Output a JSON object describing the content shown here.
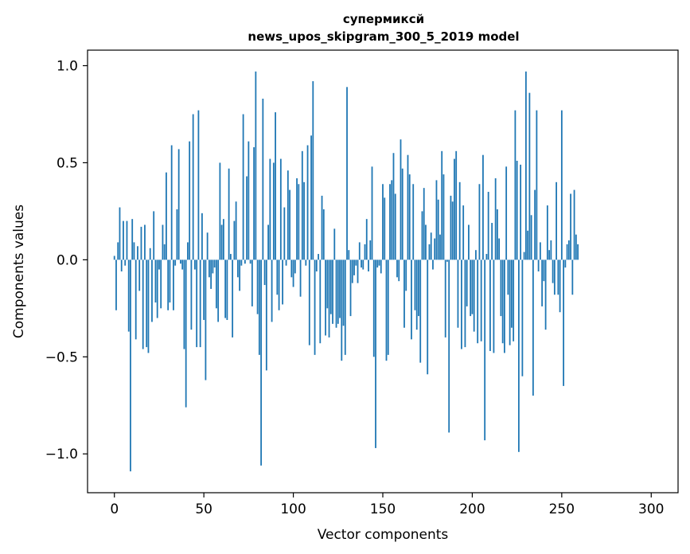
{
  "chart_data": {
    "type": "bar",
    "title": "супермиксй",
    "subtitle": "news_upos_skipgram_300_5_2019 model",
    "xlabel": "Vector components",
    "ylabel": "Components values",
    "xlim": [
      -15,
      315
    ],
    "ylim": [
      -1.2,
      1.08
    ],
    "xticks": [
      0,
      50,
      100,
      150,
      200,
      250,
      300
    ],
    "yticks": [
      -1.0,
      -0.5,
      0.0,
      0.5,
      1.0
    ],
    "ytick_labels": [
      "−1.0",
      "−0.5",
      "0.0",
      "0.5",
      "1.0"
    ],
    "bar_color": "#1f77b4",
    "values": [
      0.02,
      -0.26,
      0.09,
      0.27,
      -0.06,
      0.2,
      -0.03,
      0.2,
      -0.37,
      -1.09,
      0.21,
      0.09,
      -0.41,
      0.07,
      -0.16,
      0.17,
      -0.46,
      0.18,
      -0.45,
      -0.48,
      0.06,
      -0.32,
      0.25,
      -0.22,
      -0.3,
      -0.05,
      -0.25,
      0.18,
      0.08,
      0.45,
      -0.26,
      -0.22,
      0.59,
      -0.26,
      -0.03,
      0.26,
      0.57,
      -0.02,
      -0.05,
      -0.46,
      -0.76,
      0.09,
      0.61,
      -0.36,
      0.75,
      -0.05,
      -0.45,
      0.77,
      -0.45,
      0.24,
      -0.31,
      -0.62,
      0.14,
      -0.09,
      -0.15,
      -0.07,
      -0.04,
      -0.25,
      -0.32,
      0.5,
      0.18,
      0.21,
      -0.3,
      -0.31,
      0.47,
      0.03,
      -0.4,
      0.2,
      0.3,
      -0.09,
      -0.16,
      -0.03,
      0.75,
      -0.02,
      0.43,
      0.61,
      -0.02,
      -0.24,
      0.58,
      0.97,
      -0.28,
      -0.49,
      -1.06,
      0.83,
      -0.13,
      -0.57,
      0.18,
      0.52,
      -0.32,
      0.5,
      0.76,
      -0.18,
      -0.26,
      0.52,
      -0.23,
      0.27,
      -0.03,
      0.46,
      0.36,
      -0.09,
      -0.14,
      -0.07,
      0.42,
      0.39,
      -0.19,
      0.56,
      0.4,
      -0.03,
      0.59,
      -0.44,
      0.64,
      0.92,
      -0.49,
      -0.06,
      0.03,
      -0.43,
      0.33,
      0.26,
      -0.39,
      -0.25,
      -0.4,
      -0.28,
      -0.33,
      0.16,
      -0.35,
      -0.33,
      -0.3,
      -0.52,
      -0.34,
      -0.49,
      0.89,
      0.05,
      -0.29,
      -0.12,
      -0.08,
      -0.03,
      -0.12,
      0.09,
      -0.04,
      -0.05,
      0.08,
      0.21,
      -0.06,
      0.1,
      0.48,
      -0.5,
      -0.97,
      -0.04,
      -0.03,
      -0.07,
      0.39,
      0.32,
      -0.52,
      -0.49,
      0.39,
      0.41,
      0.55,
      0.34,
      -0.09,
      -0.11,
      0.62,
      0.47,
      -0.35,
      -0.16,
      0.54,
      0.44,
      -0.41,
      0.39,
      -0.26,
      -0.36,
      -0.29,
      -0.53,
      0.25,
      0.37,
      0.18,
      -0.59,
      0.08,
      0.14,
      -0.05,
      0.11,
      0.41,
      0.31,
      0.13,
      0.56,
      0.44,
      -0.4,
      -0.01,
      -0.89,
      0.33,
      0.3,
      0.52,
      0.56,
      -0.35,
      0.4,
      -0.46,
      0.28,
      -0.45,
      -0.24,
      0.18,
      -0.29,
      -0.28,
      -0.37,
      0.05,
      -0.43,
      0.39,
      -0.42,
      0.54,
      -0.93,
      0.03,
      0.35,
      -0.47,
      0.19,
      -0.48,
      0.42,
      0.26,
      0.11,
      -0.29,
      -0.43,
      -0.48,
      0.48,
      -0.18,
      -0.44,
      -0.35,
      -0.42,
      0.77,
      0.51,
      -0.99,
      0.49,
      -0.6,
      0.04,
      0.97,
      0.15,
      0.86,
      0.23,
      -0.7,
      0.36,
      0.77,
      -0.06,
      0.09,
      -0.24,
      -0.11,
      -0.36,
      0.28,
      0.05,
      0.1,
      -0.12,
      -0.18,
      0.4,
      -0.18,
      -0.27,
      0.77,
      -0.65,
      -0.04,
      0.08,
      0.1,
      0.34,
      -0.18,
      0.36,
      0.13,
      0.08
    ]
  }
}
